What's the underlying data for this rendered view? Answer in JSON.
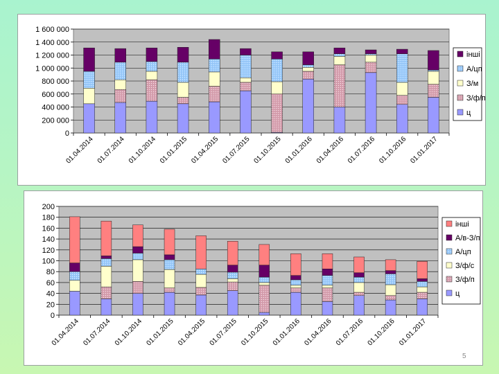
{
  "page_number": "5",
  "colors": {
    "plot_area": "#c0c0c0",
    "panel": "#ffffff"
  },
  "chart_data": [
    {
      "type": "bar",
      "stacked": true,
      "title": "",
      "xlabel": "",
      "ylabel": "",
      "ylim": [
        0,
        1600000
      ],
      "yticks": [
        0,
        200000,
        400000,
        600000,
        800000,
        1000000,
        1200000,
        1400000,
        1600000
      ],
      "ytick_labels": [
        "0",
        "200 000",
        "400 000",
        "600 000",
        "800 000",
        "1 000 000",
        "1 200 000",
        "1 400 000",
        "1 600 000"
      ],
      "legend_position": "right",
      "categories": [
        "01.04.2014",
        "01.07.2014",
        "01.10.2014",
        "01.01.2015",
        "01.04.2015",
        "01.07.2015",
        "01.10.2015",
        "01.01.2016",
        "01.04.2016",
        "01.07.2016",
        "01.10.2016",
        "01.01.2017"
      ],
      "series": [
        {
          "name": "ц",
          "color": "#9999ff",
          "pattern": "solid",
          "values": [
            450000,
            470000,
            490000,
            450000,
            480000,
            650000,
            10000,
            830000,
            400000,
            930000,
            440000,
            550000
          ]
        },
        {
          "name": "З/ф/п",
          "color": "#d9a0b0",
          "pattern": "dots",
          "values": [
            0,
            200000,
            330000,
            100000,
            240000,
            130000,
            590000,
            120000,
            650000,
            160000,
            140000,
            200000
          ]
        },
        {
          "name": "З/м",
          "color": "#ffffcc",
          "pattern": "solid",
          "values": [
            240000,
            150000,
            130000,
            230000,
            220000,
            70000,
            190000,
            60000,
            130000,
            110000,
            200000,
            200000
          ]
        },
        {
          "name": "А/цп",
          "color": "#99ccff",
          "pattern": "dots",
          "values": [
            260000,
            270000,
            150000,
            310000,
            200000,
            350000,
            350000,
            40000,
            40000,
            20000,
            440000,
            20000
          ]
        },
        {
          "name": "інші",
          "color": "#660066",
          "pattern": "solid",
          "values": [
            360000,
            210000,
            210000,
            230000,
            300000,
            100000,
            110000,
            200000,
            90000,
            60000,
            70000,
            300000
          ]
        }
      ]
    },
    {
      "type": "bar",
      "stacked": true,
      "title": "",
      "xlabel": "",
      "ylabel": "",
      "ylim": [
        0,
        200
      ],
      "yticks": [
        0,
        20,
        40,
        60,
        80,
        100,
        120,
        140,
        160,
        180,
        200
      ],
      "ytick_labels": [
        "0",
        "20",
        "40",
        "60",
        "80",
        "100",
        "120",
        "140",
        "160",
        "180",
        "200"
      ],
      "legend_position": "right",
      "categories": [
        "01.04.2014",
        "01.07.2014",
        "01.10.2014",
        "01.01.2015",
        "01.04.2015",
        "01.07.2015",
        "01.10.2015",
        "01.01.2016",
        "01.04.2016",
        "01.07.2016",
        "01.10.2016",
        "01.01.2017"
      ],
      "series": [
        {
          "name": "ц",
          "color": "#9999ff",
          "pattern": "solid",
          "values": [
            44,
            30,
            40,
            42,
            37,
            45,
            5,
            42,
            25,
            36,
            28,
            30
          ]
        },
        {
          "name": "З/ф/п",
          "color": "#d9a0b0",
          "pattern": "dots",
          "values": [
            0,
            22,
            22,
            8,
            14,
            16,
            50,
            8,
            25,
            6,
            8,
            12
          ]
        },
        {
          "name": "З/ф/с",
          "color": "#ffffcc",
          "pattern": "solid",
          "values": [
            20,
            38,
            40,
            34,
            24,
            6,
            5,
            5,
            5,
            18,
            20,
            10
          ]
        },
        {
          "name": "А/цп",
          "color": "#99ccff",
          "pattern": "dots",
          "values": [
            16,
            14,
            12,
            18,
            10,
            12,
            10,
            10,
            18,
            10,
            20,
            10
          ]
        },
        {
          "name": "А/в-З/п",
          "color": "#660066",
          "pattern": "solid",
          "values": [
            16,
            5,
            12,
            9,
            0,
            13,
            22,
            8,
            12,
            8,
            6,
            5
          ]
        },
        {
          "name": "інші",
          "color": "#ff8080",
          "pattern": "solid",
          "values": [
            85,
            64,
            40,
            47,
            61,
            44,
            38,
            40,
            28,
            29,
            20,
            32
          ]
        }
      ]
    }
  ]
}
